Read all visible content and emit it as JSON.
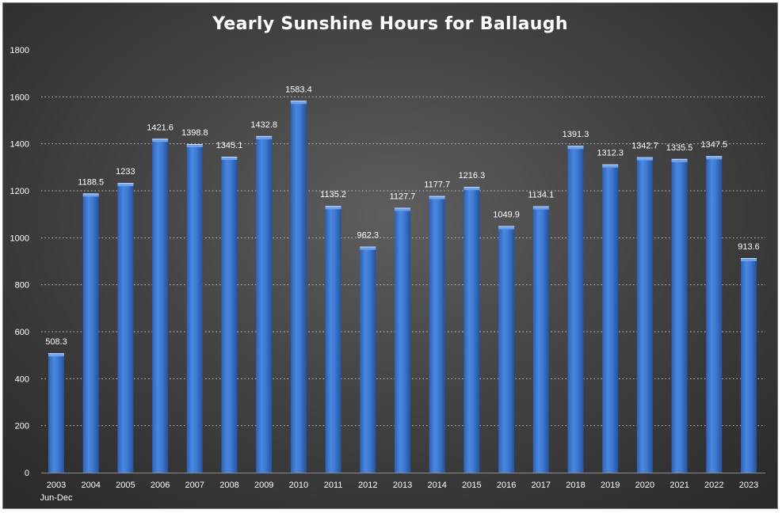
{
  "chart_data": {
    "type": "bar",
    "title": "Yearly Sunshine  Hours for Ballaugh",
    "xlabel": "",
    "ylabel": "",
    "ylim": [
      0,
      1800
    ],
    "yticks": [
      0,
      200,
      400,
      600,
      800,
      1000,
      1200,
      1400,
      1600,
      1800
    ],
    "grid": true,
    "categories": [
      "2003",
      "2004",
      "2005",
      "2006",
      "2007",
      "2008",
      "2009",
      "2010",
      "2011",
      "2012",
      "2013",
      "2014",
      "2015",
      "2016",
      "2017",
      "2018",
      "2019",
      "2020",
      "2021",
      "2022",
      "2023"
    ],
    "category_sublabels": [
      "Jun-Dec",
      "",
      "",
      "",
      "",
      "",
      "",
      "",
      "",
      "",
      "",
      "",
      "",
      "",
      "",
      "",
      "",
      "",
      "",
      "",
      ""
    ],
    "values": [
      508.3,
      1188.5,
      1233,
      1421.6,
      1398.8,
      1345.1,
      1432.8,
      1583.4,
      1135.2,
      962.3,
      1127.7,
      1177.7,
      1216.3,
      1049.9,
      1134.1,
      1391.3,
      1312.3,
      1342.7,
      1335.5,
      1347.5,
      913.6
    ],
    "value_labels": [
      "508.3",
      "1188.5",
      "1233",
      "1421.6",
      "1398.8",
      "1345.1",
      "1432.8",
      "1583.4",
      "1135.2",
      "962.3",
      "1127.7",
      "1177.7",
      "1216.3",
      "1049.9",
      "1134.1",
      "1391.3",
      "1312.3",
      "1342.7",
      "1335.5",
      "1347.5",
      "913.6"
    ],
    "colors": {
      "bar": "#3c78d0",
      "bar_light": "#6fa0ea",
      "bar_dark": "#2557a8",
      "gridline": "#c8c8c8",
      "text": "#ffffff"
    }
  }
}
